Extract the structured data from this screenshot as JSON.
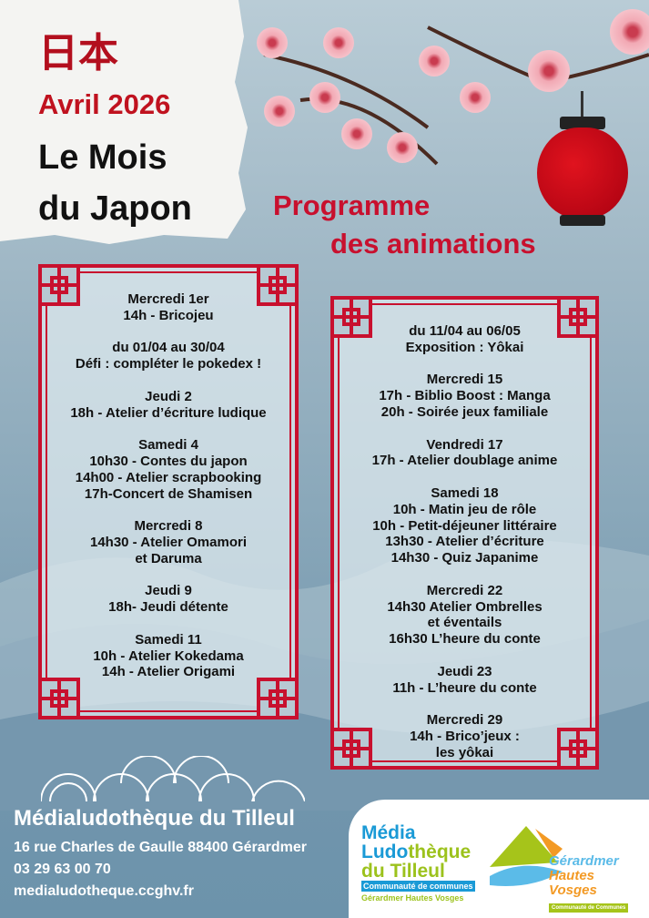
{
  "header": {
    "kanji": "日本",
    "month": "Avril 2026",
    "title_line1": "Le Mois",
    "title_line2": "du Japon",
    "programme_line1": "Programme",
    "programme_line2": "des animations"
  },
  "colors": {
    "accent_red": "#c8102e",
    "background_blue": "#7396ad"
  },
  "left_panel": [
    [
      "Mercredi 1er",
      "14h - Bricojeu"
    ],
    [
      "du 01/04 au 30/04",
      "Défi : compléter le pokedex !"
    ],
    [
      "Jeudi 2",
      "18h - Atelier d’écriture ludique"
    ],
    [
      "Samedi 4",
      "10h30 - Contes du japon",
      "14h00 - Atelier scrapbooking",
      "17h-Concert de Shamisen"
    ],
    [
      "Mercredi 8",
      "14h30 - Atelier Omamori",
      "et Daruma"
    ],
    [
      "Jeudi 9",
      "18h- Jeudi détente"
    ],
    [
      "Samedi 11",
      "10h - Atelier Kokedama",
      "14h - Atelier Origami"
    ]
  ],
  "right_panel": [
    [
      "du 11/04 au 06/05",
      "Exposition : Yôkai"
    ],
    [
      "Mercredi 15",
      "17h - Biblio Boost : Manga",
      "20h - Soirée jeux familiale"
    ],
    [
      "Vendredi 17",
      "17h - Atelier doublage anime"
    ],
    [
      "Samedi 18",
      "10h - Matin jeu de rôle",
      "10h - Petit-déjeuner littéraire",
      "13h30 - Atelier d’écriture",
      "14h30 - Quiz Japanime"
    ],
    [
      "Mercredi 22",
      "14h30 Atelier Ombrelles",
      "et éventails",
      "16h30 L’heure du conte"
    ],
    [
      "Jeudi 23",
      "11h - L’heure du conte"
    ],
    [
      "Mercredi 29",
      "14h - Brico’jeux :",
      "les yôkai"
    ]
  ],
  "footer": {
    "name": "Médialudothèque du Tilleul",
    "address": "16 rue Charles de Gaulle 88400 Gérardmer",
    "phone": "03 29 63 00 70",
    "website": "medialudotheque.ccghv.fr"
  },
  "logos": {
    "media": {
      "line1": "Média",
      "line2a": "Ludo",
      "line2b": "thèque",
      "line3": "du Tilleul",
      "band": "Communauté de communes",
      "sub": "Gérardmer Hautes Vosges"
    },
    "ccghv": {
      "line1": "Gérardmer",
      "line2": "Hautes Vosges",
      "band": "Communauté de Communes"
    }
  }
}
